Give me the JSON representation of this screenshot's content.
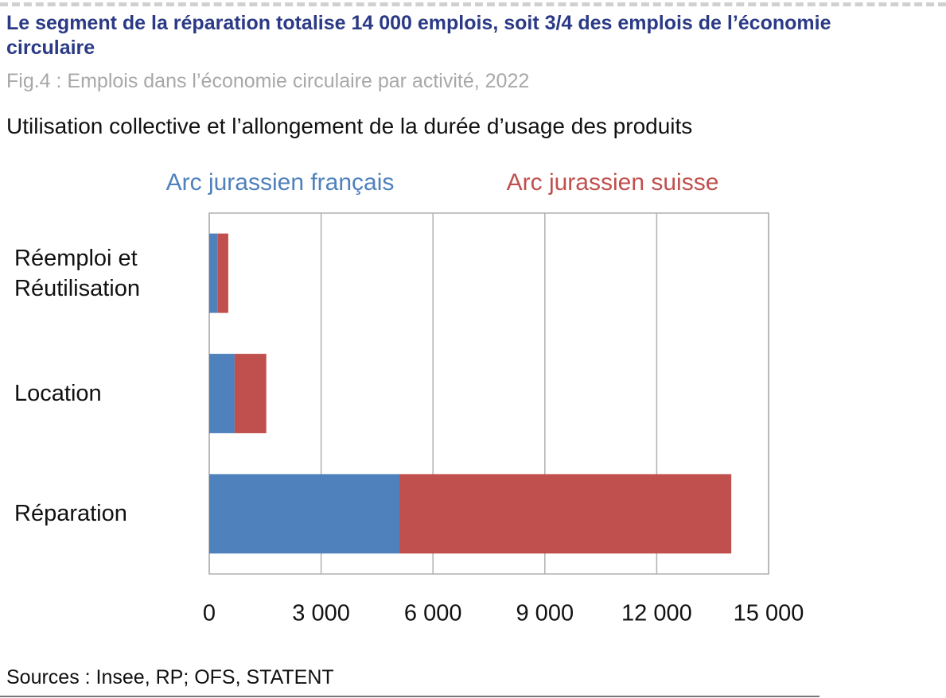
{
  "header": {
    "title": "Le segment de la réparation totalise 14 000 emplois, soit 3/4 des emplois de l’économie circulaire",
    "subtitle": "Fig.4 : Emplois dans l’économie circulaire par activité, 2022"
  },
  "chart_data": {
    "type": "stacked-bar-horizontal",
    "title": "Utilisation collective et l’allongement de la durée d’usage des produits",
    "categories": [
      "Réemploi et Réutilisation",
      "Location",
      "Réparation"
    ],
    "series": [
      {
        "name": "Arc jurassien français",
        "color": "#4f81bd",
        "values": [
          230,
          680,
          5100
        ]
      },
      {
        "name": "Arc jurassien suisse",
        "color": "#c0504d",
        "values": [
          280,
          850,
          8900
        ]
      }
    ],
    "xlim": [
      0,
      15000
    ],
    "xticks": [
      0,
      {
        "value": 3000,
        "label": "3 000"
      },
      {
        "value": 6000,
        "label": "6 000"
      },
      {
        "value": 9000,
        "label": "9 000"
      },
      {
        "value": 12000,
        "label": "12 000"
      },
      {
        "value": 15000,
        "label": "15 000"
      }
    ],
    "grid": true,
    "legend": "top",
    "source": "Sources : Insee, RP; OFS, STATENT"
  }
}
